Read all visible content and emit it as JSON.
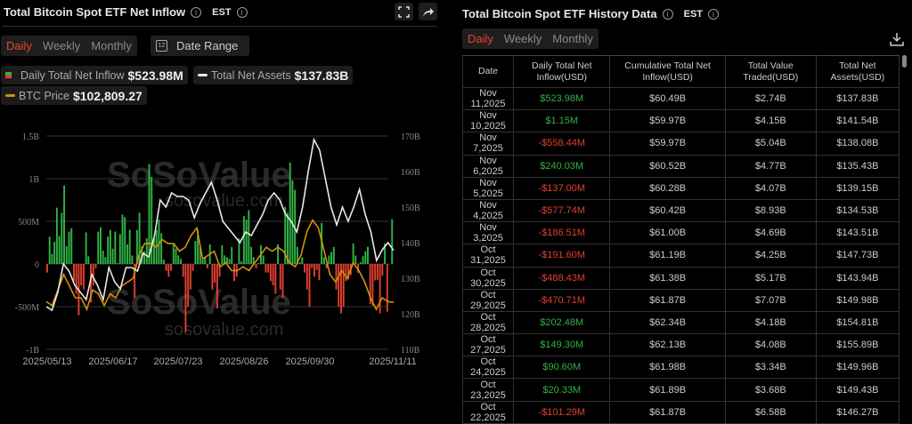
{
  "left": {
    "title": "Total Bitcoin Spot ETF Net Inflow",
    "tz": "EST",
    "tabs": [
      "Daily",
      "Weekly",
      "Monthly"
    ],
    "active_tab": "Daily",
    "date_range": "Date Range",
    "calendar_day": "12",
    "legend": {
      "inflow_label": "Daily Total Net Inflow",
      "inflow_value": "$523.98M",
      "assets_label": "Total Net Assets",
      "assets_value": "$137.83B",
      "btc_label": "BTC Price",
      "btc_value": "$102,809.27"
    }
  },
  "right": {
    "title": "Total Bitcoin Spot ETF History Data",
    "tz": "EST",
    "tabs": [
      "Daily",
      "Weekly",
      "Monthly"
    ],
    "active_tab": "Daily",
    "columns": [
      "Date",
      "Daily Total Net Inflow(USD)",
      "Cumulative Total Net Inflow(USD)",
      "Total Value Traded(USD)",
      "Total Net Assets(USD)"
    ],
    "rows": [
      [
        "Nov 11,2025",
        "$523.98M",
        "$60.49B",
        "$2.74B",
        "$137.83B"
      ],
      [
        "Nov 10,2025",
        "$1.15M",
        "$59.97B",
        "$4.15B",
        "$141.54B"
      ],
      [
        "Nov 7,2025",
        "-$558.44M",
        "$59.97B",
        "$5.04B",
        "$138.08B"
      ],
      [
        "Nov 6,2025",
        "$240.03M",
        "$60.52B",
        "$4.77B",
        "$135.43B"
      ],
      [
        "Nov 5,2025",
        "-$137.00M",
        "$60.28B",
        "$4.07B",
        "$139.15B"
      ],
      [
        "Nov 4,2025",
        "-$577.74M",
        "$60.42B",
        "$8.93B",
        "$134.53B"
      ],
      [
        "Nov 3,2025",
        "-$186.51M",
        "$61.00B",
        "$4.69B",
        "$143.51B"
      ],
      [
        "Oct 31,2025",
        "-$191.60M",
        "$61.19B",
        "$4.25B",
        "$147.73B"
      ],
      [
        "Oct 30,2025",
        "-$488.43M",
        "$61.38B",
        "$5.17B",
        "$143.94B"
      ],
      [
        "Oct 29,2025",
        "-$470.71M",
        "$61.87B",
        "$7.07B",
        "$149.98B"
      ],
      [
        "Oct 28,2025",
        "$202.48M",
        "$62.34B",
        "$4.18B",
        "$154.81B"
      ],
      [
        "Oct 27,2025",
        "$149.30M",
        "$62.13B",
        "$4.08B",
        "$155.89B"
      ],
      [
        "Oct 24,2025",
        "$90.60M",
        "$61.98B",
        "$3.34B",
        "$149.96B"
      ],
      [
        "Oct 23,2025",
        "$20.33M",
        "$61.89B",
        "$3.68B",
        "$149.43B"
      ],
      [
        "Oct 22,2025",
        "-$101.29M",
        "$61.87B",
        "$6.58B",
        "$146.27B"
      ]
    ]
  },
  "watermark": {
    "brand": "SoSoValue",
    "url": "sosovalue.com"
  },
  "colors": {
    "pos": "#2fb344",
    "neg": "#e0402f",
    "assets": "#e8e8e8",
    "btc": "#d4900e"
  },
  "chart_data": {
    "type": "bar+line",
    "left_ticks": [
      "1.5B",
      "1B",
      "500M",
      "0",
      "-500M",
      "-1B"
    ],
    "right_ticks": [
      "170B",
      "160B",
      "150B",
      "140B",
      "130B",
      "120B",
      "110B"
    ],
    "x_ticks": [
      "2025/05/13",
      "2025/06/17",
      "2025/07/23",
      "2025/08/26",
      "2025/09/30",
      "2025/11/11"
    ],
    "ylim_left_musd": [
      -1000,
      1500
    ],
    "ylim_right_busd": [
      110,
      170
    ],
    "inflow_musd": [
      -100,
      320,
      120,
      260,
      660,
      330,
      600,
      920,
      210,
      380,
      420,
      -200,
      -350,
      -600,
      -250,
      -300,
      370,
      90,
      -450,
      -250,
      -50,
      380,
      430,
      160,
      80,
      320,
      400,
      180,
      380,
      10,
      350,
      580,
      550,
      230,
      400,
      100,
      -400,
      400,
      600,
      210,
      150,
      300,
      1170,
      1020,
      300,
      400,
      520,
      360,
      50,
      -80,
      -150,
      -80,
      230,
      180,
      100,
      60,
      -150,
      -800,
      -500,
      -300,
      -80,
      270,
      400,
      200,
      50,
      80,
      -50,
      230,
      -300,
      -220,
      -520,
      -150,
      220,
      100,
      80,
      60,
      200,
      -200,
      -150,
      300,
      30,
      560,
      520,
      630,
      200,
      80,
      -50,
      10,
      220,
      100,
      -100,
      -100,
      -200,
      -250,
      -350,
      230,
      -300,
      -400,
      670,
      600,
      1190,
      980,
      870,
      200,
      20,
      80,
      -100,
      -300,
      -500,
      -50,
      -150,
      -70,
      -190,
      480,
      80,
      -50,
      100,
      140,
      200,
      -300,
      -500,
      -580,
      -500,
      -200,
      -180,
      -130,
      240,
      100,
      -101,
      20,
      91,
      149,
      202,
      -471,
      -488,
      -192,
      -187,
      -578,
      -137,
      240,
      -558,
      1,
      524
    ],
    "total_net_assets_busd": [
      122,
      121,
      126,
      134,
      132,
      128,
      126,
      124,
      131,
      128,
      124,
      133,
      129,
      127,
      133,
      133,
      132,
      137,
      136,
      142,
      152,
      150,
      154,
      153,
      153,
      152,
      147,
      151,
      154,
      157,
      152,
      146,
      144,
      142,
      140,
      143,
      142,
      145,
      148,
      152,
      154,
      152,
      148,
      146,
      143,
      150,
      160,
      169,
      166,
      158,
      150,
      145,
      150,
      146,
      150,
      155,
      148,
      143,
      135,
      138,
      140,
      137.83
    ],
    "btc_price_kusd": [
      103,
      102,
      106,
      110,
      107,
      104,
      104,
      101,
      106,
      105,
      102,
      105,
      104,
      107,
      108,
      109,
      115,
      118,
      118,
      117,
      119,
      118,
      118,
      116,
      117,
      120,
      122,
      114,
      115,
      116,
      112,
      113,
      111,
      111,
      112,
      111,
      113,
      115,
      117,
      116,
      117,
      116,
      113,
      112,
      115,
      121,
      124,
      122,
      116,
      110,
      108,
      111,
      109,
      113,
      111,
      108,
      104,
      101,
      104,
      103,
      102.8
    ]
  }
}
